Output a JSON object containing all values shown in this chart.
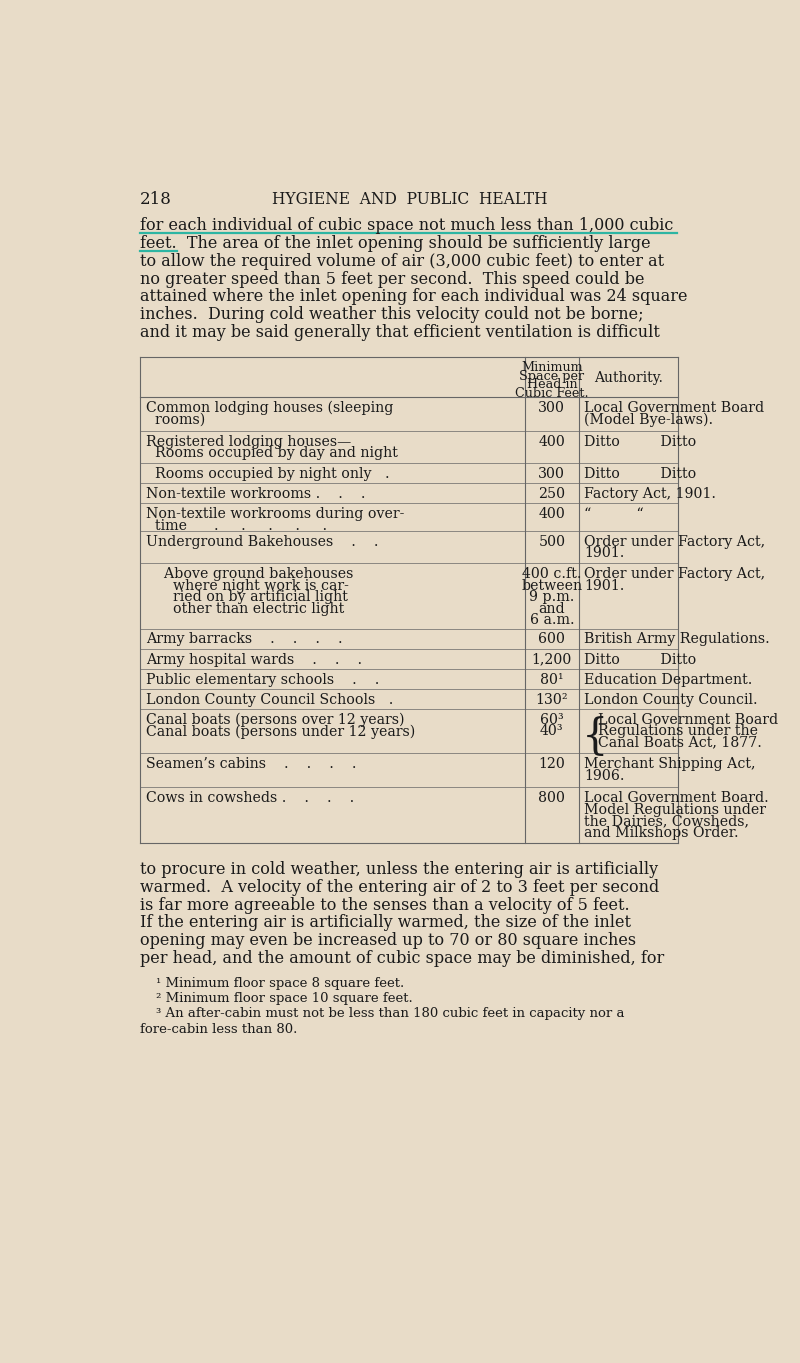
{
  "bg_color": "#e8dcc8",
  "page_number": "218",
  "header": "HYGIENE  AND  PUBLIC  HEALTH",
  "underline_color": "#2db5a3",
  "para1_lines": [
    "for each individual of cubic space not much less than 1,000 cubic",
    "feet.  The area of the inlet opening should be sufficiently large",
    "to allow the required volume of air (3,000 cubic feet) to enter at",
    "no greater speed than 5 feet per second.  This speed could be",
    "attained where the inlet opening for each individual was 24 square",
    "inches.  During cold weather this velocity could not be borne;",
    "and it may be said generally that efficient ventilation is difficult"
  ],
  "table_header_col2": "Minimum\nSpace per\nHead in\nCubic Feet.",
  "table_header_col3": "Authority.",
  "table_rows": [
    {
      "col1": "Common lodging houses (sleeping\n  rooms)",
      "col2": "300",
      "col3": "Local Government Board\n(Model Bye-laws)."
    },
    {
      "col1": "Registered lodging houses—\n  Rooms occupied by day and night",
      "col2": "400",
      "col3": "Ditto         Ditto"
    },
    {
      "col1": "  Rooms occupied by night only   .",
      "col2": "300",
      "col3": "Ditto         Ditto"
    },
    {
      "col1": "Non-textile workrooms .    .    .",
      "col2": "250",
      "col3": "Factory Act, 1901."
    },
    {
      "col1": "Non-textile workrooms during over-\n  time      .     .     .     .     .",
      "col2": "400",
      "col3": "“          “"
    },
    {
      "col1": "Underground Bakehouses    .    .",
      "col2": "500",
      "col3": "Order under Factory Act,\n1901."
    },
    {
      "col1": "    Above ground bakehouses\n      where night work is car-\n      ried on by artificial light\n      other than electric light",
      "col2": "400 c.ft.\nbetween\n9 p.m.\nand\n6 a.m.",
      "col3": "Order under Factory Act,\n1901."
    },
    {
      "col1": "Army barracks    .    .    .    .",
      "col2": "600",
      "col3": "British Army Regulations."
    },
    {
      "col1": "Army hospital wards    .    .    .",
      "col2": "1,200",
      "col3": "Ditto         Ditto"
    },
    {
      "col1": "Public elementary schools    .    .",
      "col2": "80¹",
      "col3": "Education Department."
    },
    {
      "col1": "London County Council Schools   .",
      "col2": "130²",
      "col3": "London County Council."
    },
    {
      "col1": "Canal boats (persons over 12 years)\nCanal boats (persons under 12 years)",
      "col2": "60³\n40³",
      "col3": "BRACE:Local Government Board\nRegulations under the\nCanal Boats Act, 1877."
    },
    {
      "col1": "Seamen’s cabins    .    .    .    .",
      "col2": "120",
      "col3": "Merchant Shipping Act,\n1906."
    },
    {
      "col1": "Cows in cowsheds .    .    .    .",
      "col2": "800",
      "col3": "Local Government Board.\nModel Regulations under\nthe Dairies, Cowsheds,\nand Milkshops Order."
    }
  ],
  "para2_lines": [
    "to procure in cold weather, unless the entering air is artificially",
    "warmed.  A velocity of the entering air of 2 to 3 feet per second",
    "is far more agreeable to the senses than a velocity of 5 feet.",
    "If the entering air is artificially warmed, the size of the inlet",
    "opening may even be increased up to 70 or 80 square inches",
    "per head, and the amount of cubic space may be diminished, for"
  ],
  "footnotes": [
    "¹ Minimum floor space 8 square feet.",
    "² Minimum floor space 10 square feet.",
    "³ An after-cabin must not be less than 180 cubic feet in capacity nor a",
    "fore-cabin less than 80."
  ],
  "text_color": "#1a1a1a",
  "font_size_body": 11.5,
  "font_size_table": 10.2,
  "font_size_footnote": 9.5
}
